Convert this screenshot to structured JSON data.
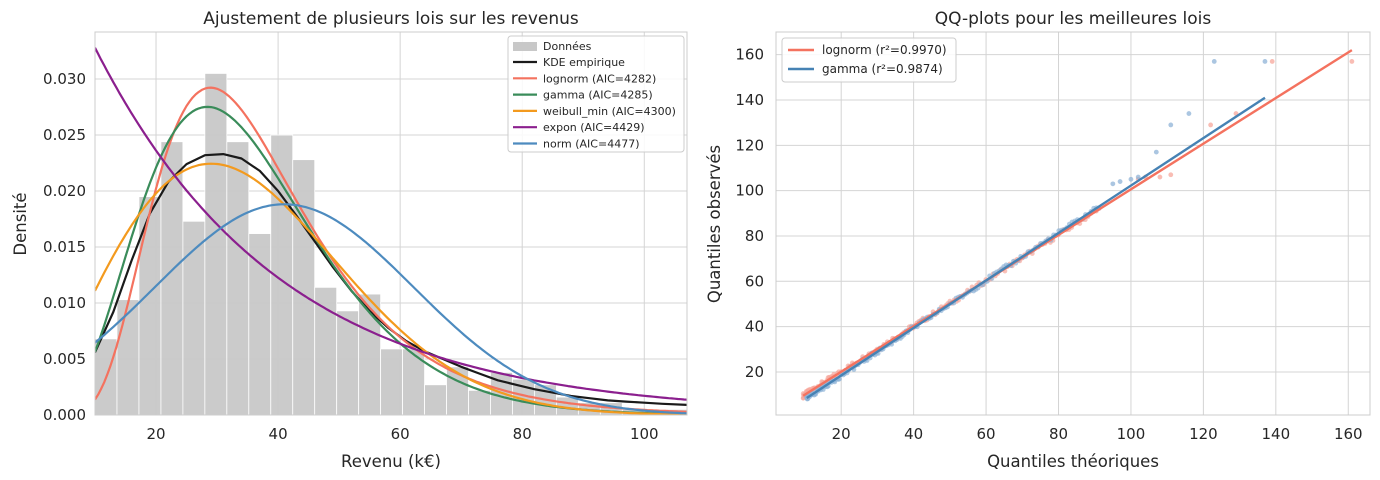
{
  "chart_data": [
    {
      "type": "histogram",
      "title": "Ajustement de plusieurs lois sur les revenus",
      "xlabel": "Revenu (k€)",
      "ylabel": "Densité",
      "xlim": [
        10,
        107
      ],
      "ylim": [
        0,
        0.0342
      ],
      "xticks": [
        20,
        40,
        60,
        80,
        100
      ],
      "yticks": [
        0.0,
        0.005,
        0.01,
        0.015,
        0.02,
        0.025,
        0.03
      ],
      "ytick_labels": [
        "0.000",
        "0.005",
        "0.010",
        "0.015",
        "0.020",
        "0.025",
        "0.030"
      ],
      "histogram": {
        "label": "Données",
        "color": "#c8c8c8",
        "bins": [
          {
            "x0": 10.0,
            "x1": 13.6,
            "density": 0.0068
          },
          {
            "x0": 13.6,
            "x1": 17.2,
            "density": 0.0103
          },
          {
            "x0": 17.2,
            "x1": 20.8,
            "density": 0.0195
          },
          {
            "x0": 20.8,
            "x1": 24.4,
            "density": 0.0244
          },
          {
            "x0": 24.4,
            "x1": 28.0,
            "density": 0.0173
          },
          {
            "x0": 28.0,
            "x1": 31.6,
            "density": 0.0305
          },
          {
            "x0": 31.6,
            "x1": 35.2,
            "density": 0.0244
          },
          {
            "x0": 35.2,
            "x1": 38.8,
            "density": 0.0162
          },
          {
            "x0": 38.8,
            "x1": 42.4,
            "density": 0.025
          },
          {
            "x0": 42.4,
            "x1": 46.0,
            "density": 0.0228
          },
          {
            "x0": 46.0,
            "x1": 49.6,
            "density": 0.0114
          },
          {
            "x0": 49.6,
            "x1": 53.2,
            "density": 0.0093
          },
          {
            "x0": 53.2,
            "x1": 56.8,
            "density": 0.0108
          },
          {
            "x0": 56.8,
            "x1": 60.4,
            "density": 0.0059
          },
          {
            "x0": 60.4,
            "x1": 64.0,
            "density": 0.0059
          },
          {
            "x0": 64.0,
            "x1": 67.6,
            "density": 0.0027
          },
          {
            "x0": 67.6,
            "x1": 71.2,
            "density": 0.0043
          },
          {
            "x0": 71.2,
            "x1": 74.8,
            "density": 0.0022
          },
          {
            "x0": 74.8,
            "x1": 78.4,
            "density": 0.0038
          },
          {
            "x0": 78.4,
            "x1": 82.0,
            "density": 0.0032
          },
          {
            "x0": 82.0,
            "x1": 85.6,
            "density": 0.0027
          },
          {
            "x0": 85.6,
            "x1": 89.2,
            "density": 0.0016
          },
          {
            "x0": 89.2,
            "x1": 92.8,
            "density": 0.0011
          },
          {
            "x0": 92.8,
            "x1": 96.4,
            "density": 0.0011
          },
          {
            "x0": 96.4,
            "x1": 100.0,
            "density": 0.0005
          },
          {
            "x0": 100.0,
            "x1": 103.6,
            "density": 0.0005
          },
          {
            "x0": 103.6,
            "x1": 107.0,
            "density": 0.0005
          }
        ]
      },
      "series": [
        {
          "name": "KDE empirique",
          "color": "#1a1a1a",
          "kind": "kde"
        },
        {
          "name": "lognorm (AIC=4282)",
          "color": "#f4725f",
          "kind": "lognorm",
          "params": {
            "mu": 3.55,
            "sigma": 0.43
          }
        },
        {
          "name": "gamma (AIC=4285)",
          "color": "#3a8c5a",
          "kind": "gamma",
          "params": {
            "shape": 5.0,
            "scale": 7.1
          }
        },
        {
          "name": "weibull_min (AIC=4300)",
          "color": "#f39a1e",
          "kind": "weibull",
          "params": {
            "k": 2.1,
            "lambda": 39.5
          }
        },
        {
          "name": "expon (AIC=4429)",
          "color": "#8b1f8e",
          "kind": "expon",
          "params": {
            "loc": 10.0,
            "scale": 30.5
          }
        },
        {
          "name": "norm (AIC=4477)",
          "color": "#4d8bbf",
          "kind": "norm",
          "params": {
            "mu": 41.0,
            "sigma": 21.2
          }
        }
      ],
      "kde_points": {
        "x": [
          10,
          13,
          16,
          19,
          22,
          25,
          28,
          31,
          34,
          37,
          40,
          43,
          46,
          49,
          52,
          55,
          58,
          61,
          64,
          67,
          70,
          73,
          76,
          79,
          82,
          85,
          88,
          91,
          94,
          97,
          100,
          103,
          107
        ],
        "y": [
          0.0056,
          0.0092,
          0.0138,
          0.018,
          0.0208,
          0.0224,
          0.0232,
          0.0233,
          0.0229,
          0.0218,
          0.02,
          0.0178,
          0.0155,
          0.0132,
          0.0111,
          0.0093,
          0.0078,
          0.0066,
          0.0057,
          0.005,
          0.0043,
          0.0037,
          0.0031,
          0.0027,
          0.0023,
          0.002,
          0.0017,
          0.0015,
          0.0013,
          0.0012,
          0.0011,
          0.001,
          0.0009
        ]
      },
      "legend_position": "upper right"
    },
    {
      "type": "scatter+line",
      "title": "QQ-plots pour les meilleures lois",
      "xlabel": "Quantiles théoriques",
      "ylabel": "Quantiles observés",
      "xlim": [
        2,
        166
      ],
      "ylim": [
        1,
        170
      ],
      "xticks": [
        20,
        40,
        60,
        80,
        100,
        120,
        140,
        160
      ],
      "yticks": [
        20,
        40,
        60,
        80,
        100,
        120,
        140,
        160
      ],
      "series": [
        {
          "name": "lognorm (r²=0.9970)",
          "color": "#f4725f",
          "point_color": "#f7a79b",
          "line": [
            [
              9.5,
              9.5
            ],
            [
              161,
              162
            ]
          ],
          "outliers": [
            [
              102,
              105
            ],
            [
              104,
              106
            ],
            [
              108,
              106
            ],
            [
              111,
              107
            ],
            [
              122,
              129
            ],
            [
              129,
              134
            ],
            [
              139,
              157
            ],
            [
              161,
              157
            ]
          ]
        },
        {
          "name": "gamma (r²=0.9874)",
          "color": "#4682b4",
          "point_color": "#8fb3d7",
          "line": [
            [
              10.5,
              8.5
            ],
            [
              137,
              141
            ]
          ],
          "outliers": [
            [
              95,
              103
            ],
            [
              97,
              104
            ],
            [
              100,
              105
            ],
            [
              102,
              106
            ],
            [
              107,
              117
            ],
            [
              111,
              129
            ],
            [
              116,
              134
            ],
            [
              123,
              157
            ],
            [
              137,
              157
            ]
          ]
        }
      ],
      "legend_position": "upper left"
    }
  ]
}
